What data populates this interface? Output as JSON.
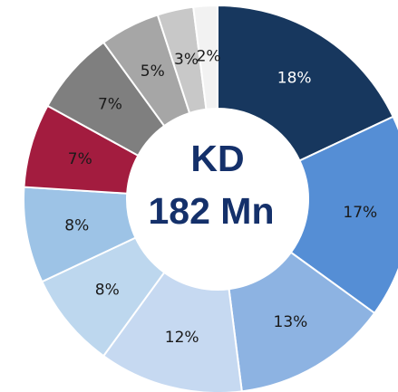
{
  "chart_data": {
    "type": "donut",
    "center_label": [
      "KD",
      "182 Mn"
    ],
    "values": [
      18,
      17,
      13,
      12,
      8,
      8,
      7,
      7,
      5,
      3,
      2
    ],
    "value_labels": [
      "18%",
      "17%",
      "13%",
      "12%",
      "8%",
      "8%",
      "7%",
      "7%",
      "5%",
      "3%",
      "2%"
    ],
    "colors": [
      "#17375e",
      "#558ed5",
      "#8db3e2",
      "#c6d9f1",
      "#bdd7ee",
      "#9dc3e6",
      "#a31c3f",
      "#7f7f7f",
      "#a6a6a6",
      "#c8c8c8",
      "#f2f2f2"
    ]
  }
}
